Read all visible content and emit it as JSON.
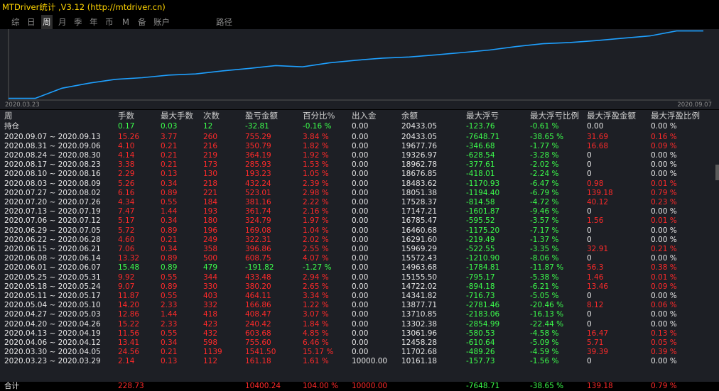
{
  "window": {
    "title": "MTDriver统计 ,V3.12 (http://mtdriver.cn)"
  },
  "tabs": [
    {
      "label": "综",
      "active": false
    },
    {
      "label": "日",
      "active": false
    },
    {
      "label": "周",
      "active": true
    },
    {
      "label": "月",
      "active": false
    },
    {
      "label": "季",
      "active": false
    },
    {
      "label": "年",
      "active": false
    },
    {
      "label": "币",
      "active": false
    },
    {
      "label": "M",
      "active": false
    },
    {
      "label": "备",
      "active": false
    },
    {
      "label": "账户",
      "active": false
    },
    {
      "label": "路径",
      "active": false
    }
  ],
  "colors": {
    "line": "#1ea0ff",
    "chart_bg": "#1d1f25",
    "profit": "#ff2a2a",
    "loss": "#3cff4c",
    "text": "#e6e6e6"
  },
  "chart_data": {
    "type": "line",
    "x_start": "2020.03.23",
    "x_end": "2020.09.07",
    "series": [
      {
        "values": [
          10161.18,
          10161.18,
          11702.68,
          12458.28,
          13061.96,
          13302.38,
          13710.85,
          13877.71,
          14341.82,
          14722.02,
          15155.5,
          14963.68,
          15572.43,
          15969.29,
          16291.6,
          16460.68,
          16785.47,
          17147.21,
          17528.37,
          18051.38,
          18483.62,
          18676.85,
          18962.78,
          19326.97,
          19677.76,
          20433.05,
          20433.05
        ]
      }
    ]
  },
  "table": {
    "headers": [
      "周",
      "手数",
      "最大手数",
      "次数",
      "盈亏金额",
      "百分比%",
      "出入金",
      "余额",
      "最大浮亏",
      "最大浮亏比例",
      "最大浮盈金额",
      "最大浮盈比例"
    ],
    "holding": {
      "label": "持仓",
      "cells": [
        {
          "v": "0.17",
          "c": "green"
        },
        {
          "v": "0.03",
          "c": "green"
        },
        {
          "v": "12",
          "c": "green"
        },
        {
          "v": "-32.81",
          "c": "green"
        },
        {
          "v": "-0.16 %",
          "c": "green"
        },
        {
          "v": "0.00",
          "c": "white"
        },
        {
          "v": "20433.05",
          "c": "white"
        },
        {
          "v": "-123.76",
          "c": "green"
        },
        {
          "v": "-0.61 %",
          "c": "green"
        },
        {
          "v": "0.00",
          "c": "white"
        },
        {
          "v": "0.00 %",
          "c": "white"
        }
      ]
    },
    "rows": [
      [
        "2020.09.07 ~ 2020.09.13",
        "15.26",
        "3.77",
        "260",
        "755.29",
        "3.84 %",
        "0.00",
        "20433.05",
        "-7648.71",
        "-38.65 %",
        "31.69",
        "0.16 %"
      ],
      [
        "2020.08.31 ~ 2020.09.06",
        "4.10",
        "0.21",
        "216",
        "350.79",
        "1.82 %",
        "0.00",
        "19677.76",
        "-346.68",
        "-1.77 %",
        "16.68",
        "0.09 %"
      ],
      [
        "2020.08.24 ~ 2020.08.30",
        "4.14",
        "0.21",
        "219",
        "364.19",
        "1.92 %",
        "0.00",
        "19326.97",
        "-628.54",
        "-3.28 %",
        "0",
        "0.00 %"
      ],
      [
        "2020.08.17 ~ 2020.08.23",
        "3.38",
        "0.21",
        "173",
        "285.93",
        "1.53 %",
        "0.00",
        "18962.78",
        "-377.61",
        "-2.02 %",
        "0",
        "0.00 %"
      ],
      [
        "2020.08.10 ~ 2020.08.16",
        "2.29",
        "0.13",
        "130",
        "193.23",
        "1.05 %",
        "0.00",
        "18676.85",
        "-418.01",
        "-2.24 %",
        "0",
        "0.00 %"
      ],
      [
        "2020.08.03 ~ 2020.08.09",
        "5.26",
        "0.34",
        "218",
        "432.24",
        "2.39 %",
        "0.00",
        "18483.62",
        "-1170.93",
        "-6.47 %",
        "0.98",
        "0.01 %"
      ],
      [
        "2020.07.27 ~ 2020.08.02",
        "6.16",
        "0.89",
        "221",
        "523.01",
        "2.98 %",
        "0.00",
        "18051.38",
        "-1194.40",
        "-6.79 %",
        "139.18",
        "0.79 %"
      ],
      [
        "2020.07.20 ~ 2020.07.26",
        "4.34",
        "0.55",
        "184",
        "381.16",
        "2.22 %",
        "0.00",
        "17528.37",
        "-814.58",
        "-4.72 %",
        "40.12",
        "0.23 %"
      ],
      [
        "2020.07.13 ~ 2020.07.19",
        "7.47",
        "1.44",
        "193",
        "361.74",
        "2.16 %",
        "0.00",
        "17147.21",
        "-1601.87",
        "-9.46 %",
        "0",
        "0.00 %"
      ],
      [
        "2020.07.06 ~ 2020.07.12",
        "5.17",
        "0.34",
        "180",
        "324.79",
        "1.97 %",
        "0.00",
        "16785.47",
        "-595.52",
        "-3.57 %",
        "1.56",
        "0.01 %"
      ],
      [
        "2020.06.29 ~ 2020.07.05",
        "5.72",
        "0.89",
        "196",
        "169.08",
        "1.04 %",
        "0.00",
        "16460.68",
        "-1175.20",
        "-7.17 %",
        "0",
        "0.00 %"
      ],
      [
        "2020.06.22 ~ 2020.06.28",
        "4.60",
        "0.21",
        "249",
        "322.31",
        "2.02 %",
        "0.00",
        "16291.60",
        "-219.49",
        "-1.37 %",
        "0",
        "0.00 %"
      ],
      [
        "2020.06.15 ~ 2020.06.21",
        "7.06",
        "0.34",
        "358",
        "396.86",
        "2.55 %",
        "0.00",
        "15969.29",
        "-522.55",
        "-3.35 %",
        "32.91",
        "0.21 %"
      ],
      [
        "2020.06.08 ~ 2020.06.14",
        "13.32",
        "0.89",
        "500",
        "608.75",
        "4.07 %",
        "0.00",
        "15572.43",
        "-1210.90",
        "-8.06 %",
        "0",
        "0.00 %"
      ],
      [
        "2020.06.01 ~ 2020.06.07",
        "15.48",
        "0.89",
        "479",
        "-191.82",
        "-1.27 %",
        "0.00",
        "14963.68",
        "-1784.81",
        "-11.87 %",
        "56.3",
        "0.38 %"
      ],
      [
        "2020.05.25 ~ 2020.05.31",
        "9.92",
        "0.55",
        "344",
        "433.48",
        "2.94 %",
        "0.00",
        "15155.50",
        "-795.17",
        "-5.38 %",
        "1.46",
        "0.01 %"
      ],
      [
        "2020.05.18 ~ 2020.05.24",
        "9.07",
        "0.89",
        "330",
        "380.20",
        "2.65 %",
        "0.00",
        "14722.02",
        "-894.18",
        "-6.21 %",
        "13.46",
        "0.09 %"
      ],
      [
        "2020.05.11 ~ 2020.05.17",
        "11.87",
        "0.55",
        "403",
        "464.11",
        "3.34 %",
        "0.00",
        "14341.82",
        "-716.73",
        "-5.05 %",
        "0",
        "0.00 %"
      ],
      [
        "2020.05.04 ~ 2020.05.10",
        "14.20",
        "2.33",
        "332",
        "166.86",
        "1.22 %",
        "0.00",
        "13877.71",
        "-2781.46",
        "-20.46 %",
        "8.12",
        "0.06 %"
      ],
      [
        "2020.04.27 ~ 2020.05.03",
        "12.86",
        "1.44",
        "418",
        "408.47",
        "3.07 %",
        "0.00",
        "13710.85",
        "-2183.06",
        "-16.13 %",
        "0",
        "0.00 %"
      ],
      [
        "2020.04.20 ~ 2020.04.26",
        "15.22",
        "2.33",
        "423",
        "240.42",
        "1.84 %",
        "0.00",
        "13302.38",
        "-2854.99",
        "-22.44 %",
        "0",
        "0.00 %"
      ],
      [
        "2020.04.13 ~ 2020.04.19",
        "11.56",
        "0.55",
        "432",
        "603.68",
        "4.85 %",
        "0.00",
        "13061.96",
        "-580.53",
        "-4.58 %",
        "16.47",
        "0.13 %"
      ],
      [
        "2020.04.06 ~ 2020.04.12",
        "13.41",
        "0.34",
        "598",
        "755.60",
        "6.46 %",
        "0.00",
        "12458.28",
        "-610.64",
        "-5.09 %",
        "5.71",
        "0.05 %"
      ],
      [
        "2020.03.30 ~ 2020.04.05",
        "24.56",
        "0.21",
        "1139",
        "1541.50",
        "15.17 %",
        "0.00",
        "11702.68",
        "-489.26",
        "-4.59 %",
        "39.39",
        "0.39 %"
      ],
      [
        "2020.03.23 ~ 2020.03.29",
        "2.14",
        "0.13",
        "112",
        "161.18",
        "1.61 %",
        "10000.00",
        "10161.18",
        "-157.73",
        "-1.56 %",
        "0",
        "0.00 %"
      ]
    ],
    "total": {
      "label": "合计",
      "cells": [
        {
          "v": "228.73",
          "c": "red"
        },
        {
          "v": "",
          "c": "white"
        },
        {
          "v": "",
          "c": "white"
        },
        {
          "v": "10400.24",
          "c": "red"
        },
        {
          "v": "104.00 %",
          "c": "red"
        },
        {
          "v": "10000.00",
          "c": "red"
        },
        {
          "v": "",
          "c": "white"
        },
        {
          "v": "-7648.71",
          "c": "green"
        },
        {
          "v": "-38.65 %",
          "c": "green"
        },
        {
          "v": "139.18",
          "c": "red"
        },
        {
          "v": "0.79 %",
          "c": "red"
        }
      ]
    }
  }
}
